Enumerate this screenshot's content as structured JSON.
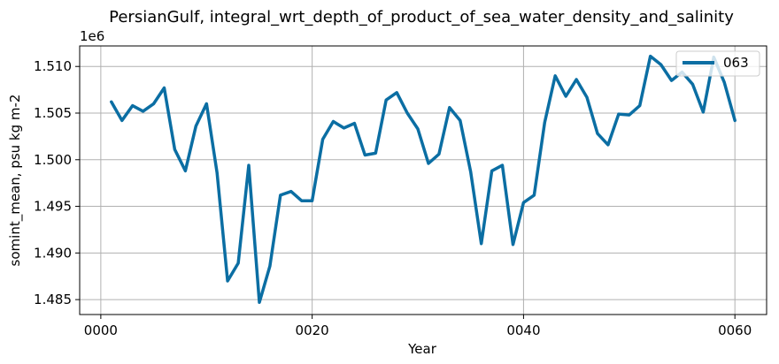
{
  "chart_data": {
    "type": "line",
    "title": "PersianGulf, integral_wrt_depth_of_product_of_sea_water_density_and_salinity",
    "xlabel": "Year",
    "ylabel": "somint_mean, psu kg m-2",
    "y_offset_label": "1e6",
    "xlim": [
      -2,
      63
    ],
    "ylim": [
      1.4834,
      1.5122
    ],
    "x_ticks": [
      {
        "value": 0,
        "label": "0000"
      },
      {
        "value": 20,
        "label": "0020"
      },
      {
        "value": 40,
        "label": "0040"
      },
      {
        "value": 60,
        "label": "0060"
      }
    ],
    "y_ticks": [
      {
        "value": 1.485,
        "label": "1.485"
      },
      {
        "value": 1.49,
        "label": "1.490"
      },
      {
        "value": 1.495,
        "label": "1.495"
      },
      {
        "value": 1.5,
        "label": "1.500"
      },
      {
        "value": 1.505,
        "label": "1.505"
      },
      {
        "value": 1.51,
        "label": "1.510"
      }
    ],
    "grid": true,
    "legend_position": "top-right",
    "series": [
      {
        "name": "063",
        "color": "#0b6ea3",
        "x": [
          1,
          2,
          3,
          4,
          5,
          6,
          7,
          8,
          9,
          10,
          11,
          12,
          13,
          14,
          15,
          16,
          17,
          18,
          19,
          20,
          21,
          22,
          23,
          24,
          25,
          26,
          27,
          28,
          29,
          30,
          31,
          32,
          33,
          34,
          35,
          36,
          37,
          38,
          39,
          40,
          41,
          42,
          43,
          44,
          45,
          46,
          47,
          48,
          49,
          50,
          51,
          52,
          53,
          54,
          55,
          56,
          57,
          58,
          59,
          60
        ],
        "y": [
          1.5062,
          1.5042,
          1.5058,
          1.5052,
          1.506,
          1.5077,
          1.5011,
          1.4988,
          1.5036,
          1.506,
          1.4986,
          1.487,
          1.4889,
          1.4994,
          1.4847,
          1.4886,
          1.4962,
          1.4966,
          1.4956,
          1.4956,
          1.5022,
          1.5041,
          1.5034,
          1.5039,
          1.5005,
          1.5007,
          1.5064,
          1.5072,
          1.505,
          1.5033,
          1.4996,
          1.5006,
          1.5056,
          1.5042,
          1.4987,
          1.491,
          1.4988,
          1.4994,
          1.4909,
          1.4954,
          1.4962,
          1.504,
          1.509,
          1.5068,
          1.5086,
          1.5067,
          1.5028,
          1.5016,
          1.5049,
          1.5048,
          1.5058,
          1.5111,
          1.5102,
          1.5085,
          1.5094,
          1.5081,
          1.5051,
          1.511,
          1.5083,
          1.5042
        ]
      }
    ]
  }
}
